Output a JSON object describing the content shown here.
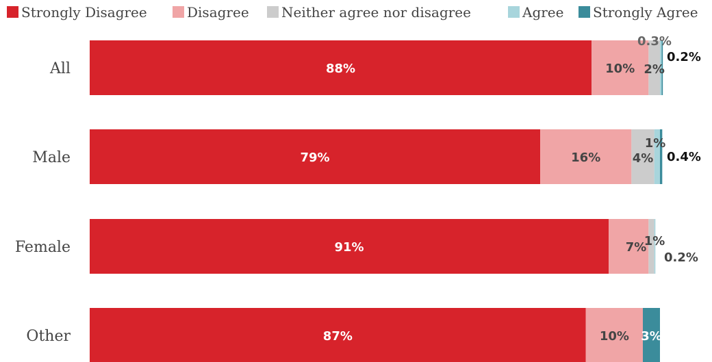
{
  "chart_data": {
    "type": "bar",
    "orientation": "horizontal",
    "stacked": true,
    "title": "",
    "xlabel": "",
    "ylabel": "",
    "xlim": [
      0,
      100
    ],
    "grid": false,
    "legend_position": "top",
    "categories": [
      "All",
      "Male",
      "Female",
      "Other"
    ],
    "series": [
      {
        "name": "Strongly Disagree",
        "color": "#d7232b",
        "values": [
          88,
          79,
          91,
          87
        ]
      },
      {
        "name": "Disagree",
        "color": "#f0a5a6",
        "values": [
          10,
          16,
          7,
          10
        ]
      },
      {
        "name": "Neither agree nor disagree",
        "color": "#cccccc",
        "values": [
          2,
          4,
          1,
          0
        ]
      },
      {
        "name": "Agree",
        "color": "#a8d5dc",
        "values": [
          0.3,
          1,
          0.2,
          0
        ]
      },
      {
        "name": "Strongly Agree",
        "color": "#3b8c9b",
        "values": [
          0.2,
          0.4,
          0,
          3
        ]
      }
    ],
    "data_labels": [
      [
        "88%",
        "10%",
        "2%",
        "0.3%",
        "0.2%"
      ],
      [
        "79%",
        "16%",
        "4%",
        "1%",
        "0.4%"
      ],
      [
        "91%",
        "7%",
        "1%",
        "0.2%",
        ""
      ],
      [
        "87%",
        "10%",
        "",
        "",
        "3%"
      ]
    ]
  }
}
